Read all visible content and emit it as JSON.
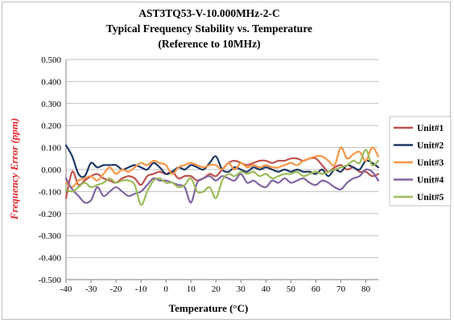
{
  "chart_data": {
    "type": "line",
    "title_lines": [
      "AST3TQ53-V-10.000MHz-2-C",
      "Typical Frequency Stability vs. Temperature",
      "(Reference to 10MHz)"
    ],
    "xlabel": "Temperature (°C)",
    "ylabel": "Frequency Error (ppm)",
    "ylabel_color": "#e4252a",
    "xlim": [
      -40,
      85
    ],
    "ylim": [
      -0.5,
      0.5
    ],
    "x_ticks": [
      -40,
      -30,
      -20,
      -10,
      0,
      10,
      20,
      30,
      40,
      50,
      60,
      70,
      80
    ],
    "x_tick_labels": [
      "-40",
      "-30",
      "-20",
      "-10",
      "0",
      "10",
      "20",
      "30",
      "40",
      "50",
      "60",
      "70",
      "80"
    ],
    "y_ticks": [
      0.5,
      0.4,
      0.3,
      0.2,
      0.1,
      0.0,
      -0.1,
      -0.2,
      -0.3,
      -0.4,
      -0.5
    ],
    "y_tick_labels": [
      "0.500",
      "0.400",
      "0.300",
      "0.200",
      "0.100",
      "0.000",
      "-0.100",
      "-0.200",
      "-0.300",
      "-0.400",
      "-0.500"
    ],
    "grid": "horizontal",
    "legend_position": "right",
    "x": [
      -40,
      -37.5,
      -35,
      -32.5,
      -30,
      -27.5,
      -25,
      -22.5,
      -20,
      -17.5,
      -15,
      -12.5,
      -10,
      -7.5,
      -5,
      -2.5,
      0,
      2.5,
      5,
      7.5,
      10,
      12.5,
      15,
      17.5,
      20,
      22.5,
      25,
      27.5,
      30,
      32.5,
      35,
      37.5,
      40,
      42.5,
      45,
      47.5,
      50,
      52.5,
      55,
      57.5,
      60,
      62.5,
      65,
      67.5,
      70,
      72.5,
      75,
      77.5,
      80,
      82.5,
      85
    ],
    "series": [
      {
        "name": "Unit#1",
        "color": "#c0504d",
        "values": [
          -0.13,
          -0.01,
          -0.07,
          -0.05,
          -0.03,
          -0.02,
          -0.04,
          -0.05,
          -0.06,
          -0.04,
          -0.03,
          -0.04,
          -0.07,
          -0.03,
          -0.02,
          -0.01,
          -0.02,
          -0.01,
          -0.04,
          -0.03,
          -0.03,
          -0.05,
          -0.04,
          -0.02,
          -0.03,
          0.0,
          0.03,
          0.04,
          0.03,
          0.02,
          0.03,
          0.04,
          0.04,
          0.03,
          0.04,
          0.04,
          0.05,
          0.05,
          0.04,
          0.05,
          0.05,
          0.02,
          -0.01,
          0.01,
          0.02,
          0.0,
          0.01,
          -0.01,
          -0.01,
          -0.03,
          -0.02
        ]
      },
      {
        "name": "Unit#2",
        "color": "#1f3864",
        "values": [
          0.11,
          0.06,
          -0.02,
          -0.03,
          0.03,
          0.01,
          0.02,
          0.02,
          0.02,
          0.0,
          0.01,
          0.02,
          0.01,
          0.0,
          0.03,
          0.01,
          -0.02,
          -0.01,
          0.01,
          0.0,
          0.02,
          0.01,
          0.0,
          0.03,
          0.06,
          0.0,
          -0.01,
          0.01,
          0.0,
          -0.01,
          0.01,
          0.0,
          0.01,
          0.0,
          -0.01,
          0.0,
          -0.01,
          0.0,
          -0.01,
          -0.01,
          -0.02,
          0.0,
          -0.03,
          0.0,
          -0.01,
          0.02,
          0.01,
          0.0,
          0.04,
          0.03,
          0.01
        ]
      },
      {
        "name": "Unit#3",
        "color": "#f79646",
        "values": [
          -0.06,
          -0.08,
          -0.05,
          -0.04,
          -0.03,
          -0.05,
          -0.02,
          0.01,
          -0.02,
          0.0,
          -0.01,
          0.01,
          0.03,
          0.02,
          0.04,
          0.03,
          0.02,
          -0.02,
          0.01,
          0.02,
          0.03,
          0.02,
          0.01,
          0.02,
          0.02,
          0.0,
          0.03,
          0.0,
          0.03,
          0.01,
          0.02,
          0.01,
          0.02,
          0.01,
          0.01,
          0.02,
          0.03,
          0.02,
          0.04,
          0.05,
          0.06,
          0.06,
          0.04,
          0.02,
          0.1,
          0.05,
          0.07,
          0.08,
          0.04,
          0.1,
          0.06
        ]
      },
      {
        "name": "Unit#4",
        "color": "#8064a2",
        "values": [
          -0.04,
          -0.09,
          -0.12,
          -0.15,
          -0.14,
          -0.08,
          -0.12,
          -0.1,
          -0.08,
          -0.1,
          -0.12,
          -0.11,
          -0.1,
          -0.07,
          -0.04,
          -0.05,
          -0.05,
          -0.06,
          -0.07,
          -0.08,
          -0.15,
          -0.06,
          -0.04,
          -0.03,
          -0.05,
          -0.03,
          -0.04,
          -0.05,
          -0.02,
          -0.06,
          -0.05,
          -0.07,
          -0.08,
          -0.05,
          -0.06,
          -0.04,
          -0.06,
          -0.05,
          -0.04,
          -0.06,
          -0.07,
          -0.05,
          -0.06,
          -0.08,
          -0.09,
          -0.06,
          -0.04,
          -0.03,
          0.0,
          -0.01,
          -0.05
        ]
      },
      {
        "name": "Unit#5",
        "color": "#9bbb59",
        "values": [
          -0.09,
          -0.1,
          -0.08,
          -0.06,
          -0.08,
          -0.07,
          -0.06,
          -0.04,
          -0.06,
          -0.05,
          -0.05,
          -0.07,
          -0.16,
          -0.1,
          -0.05,
          -0.04,
          -0.06,
          -0.06,
          -0.08,
          -0.07,
          -0.04,
          -0.1,
          -0.1,
          -0.08,
          -0.13,
          -0.05,
          -0.02,
          -0.03,
          -0.01,
          -0.02,
          -0.01,
          -0.03,
          -0.02,
          -0.04,
          -0.03,
          -0.02,
          -0.02,
          -0.01,
          -0.03,
          -0.02,
          -0.01,
          -0.02,
          -0.01,
          0.0,
          0.01,
          0.02,
          0.04,
          0.03,
          0.09,
          0.02,
          0.04
        ]
      }
    ]
  }
}
